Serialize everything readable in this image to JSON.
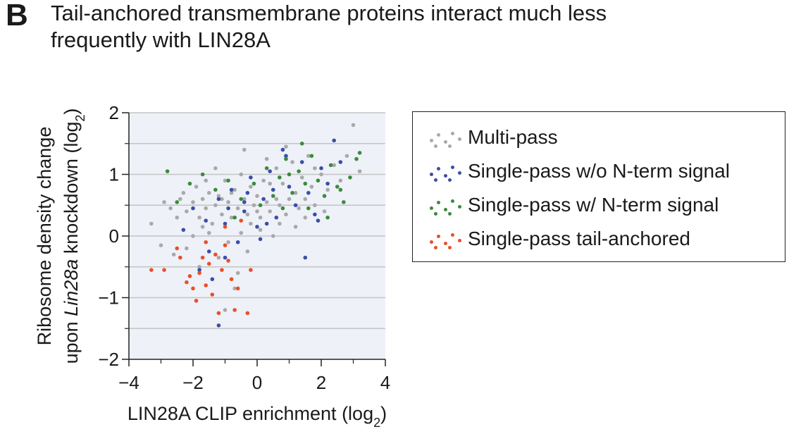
{
  "panel_letter": "B",
  "title": "Tail-anchored transmembrane proteins interact much less frequently with LIN28A",
  "chart_data": {
    "type": "scatter",
    "title": "Tail-anchored transmembrane proteins interact much less frequently with LIN28A",
    "xlabel": "LIN28A CLIP enrichment (log2)",
    "ylabel_line1": "Ribosome density change",
    "ylabel_line2": "upon Lin28a knockdown (log2)",
    "xlim": [
      -4,
      4
    ],
    "ylim": [
      -2,
      2
    ],
    "xticks": [
      -4,
      -2,
      0,
      2,
      4
    ],
    "yticks": [
      -2,
      -1,
      0,
      1,
      2
    ],
    "xtick_labels": [
      "−4",
      "−2",
      "0",
      "2",
      "4"
    ],
    "ytick_labels": [
      "−2",
      "−1",
      "0",
      "1",
      "2"
    ],
    "grid": "horizontal",
    "legend_position": "right",
    "series": [
      {
        "name": "Multi-pass",
        "color": "#a9a9a9",
        "points": [
          [
            -3.3,
            0.2
          ],
          [
            -2.9,
            0.55
          ],
          [
            -2.7,
            0.45
          ],
          [
            -2.5,
            0.3
          ],
          [
            -2.3,
            0.7
          ],
          [
            -2.2,
            0.4
          ],
          [
            -2.0,
            0.55
          ],
          [
            -1.9,
            0.8
          ],
          [
            -1.8,
            0.3
          ],
          [
            -1.7,
            0.6
          ],
          [
            -1.6,
            0.45
          ],
          [
            -1.5,
            0.7
          ],
          [
            -1.4,
            0.2
          ],
          [
            -1.3,
            0.5
          ],
          [
            -1.2,
            0.65
          ],
          [
            -1.1,
            0.35
          ],
          [
            -1.0,
            0.9
          ],
          [
            -0.9,
            0.55
          ],
          [
            -0.8,
            0.3
          ],
          [
            -0.7,
            0.75
          ],
          [
            -0.6,
            0.45
          ],
          [
            -0.5,
            1.0
          ],
          [
            -0.4,
            0.6
          ],
          [
            -0.3,
            0.35
          ],
          [
            -0.2,
            0.8
          ],
          [
            -0.1,
            0.5
          ],
          [
            0.0,
            0.65
          ],
          [
            0.1,
            0.3
          ],
          [
            0.2,
            0.9
          ],
          [
            0.3,
            0.55
          ],
          [
            0.4,
            0.4
          ],
          [
            0.5,
            0.75
          ],
          [
            0.6,
            1.1
          ],
          [
            0.7,
            0.5
          ],
          [
            0.8,
            0.85
          ],
          [
            0.9,
            0.35
          ],
          [
            1.0,
            0.6
          ],
          [
            1.1,
            1.2
          ],
          [
            1.2,
            0.7
          ],
          [
            1.3,
            0.45
          ],
          [
            1.4,
            0.95
          ],
          [
            1.5,
            0.6
          ],
          [
            1.6,
            1.3
          ],
          [
            1.7,
            0.8
          ],
          [
            1.8,
            0.5
          ],
          [
            2.0,
            1.0
          ],
          [
            2.2,
            0.75
          ],
          [
            2.4,
            1.15
          ],
          [
            2.6,
            0.9
          ],
          [
            2.8,
            1.3
          ],
          [
            3.0,
            1.8
          ],
          [
            3.2,
            1.05
          ],
          [
            -2.6,
            -0.3
          ],
          [
            -2.2,
            -0.2
          ],
          [
            -1.8,
            -0.5
          ],
          [
            -1.5,
            0.05
          ],
          [
            -1.2,
            -0.35
          ],
          [
            -0.9,
            -0.1
          ],
          [
            -0.6,
            -0.6
          ],
          [
            -0.3,
            -0.25
          ],
          [
            0.1,
            0.1
          ],
          [
            0.5,
            0.0
          ],
          [
            -1.0,
            -1.2
          ],
          [
            -0.7,
            -0.85
          ],
          [
            -2.0,
            0.0
          ],
          [
            -1.6,
            0.9
          ],
          [
            -0.4,
            1.4
          ],
          [
            0.3,
            1.25
          ],
          [
            0.9,
            1.45
          ],
          [
            -2.4,
            0.6
          ],
          [
            -1.3,
            1.1
          ],
          [
            -0.2,
            0.2
          ],
          [
            0.7,
            0.2
          ],
          [
            1.5,
            0.3
          ],
          [
            2.1,
            0.4
          ],
          [
            -3.0,
            -0.15
          ],
          [
            -1.7,
            0.15
          ],
          [
            -0.5,
            0.05
          ],
          [
            0.4,
            0.85
          ],
          [
            1.2,
            0.15
          ],
          [
            -1.1,
            0.6
          ],
          [
            -0.8,
            0.7
          ],
          [
            0.0,
            0.4
          ],
          [
            0.6,
            0.6
          ],
          [
            1.8,
            1.1
          ]
        ]
      },
      {
        "name": "Single-pass w/o N-term signal",
        "color": "#3b4ea6",
        "points": [
          [
            -2.3,
            0.1
          ],
          [
            -2.0,
            0.45
          ],
          [
            -1.8,
            -0.55
          ],
          [
            -1.6,
            0.25
          ],
          [
            -1.4,
            -0.7
          ],
          [
            -1.2,
            0.6
          ],
          [
            -1.0,
            0.2
          ],
          [
            -0.8,
            0.75
          ],
          [
            -0.6,
            -0.1
          ],
          [
            -0.4,
            0.4
          ],
          [
            -0.2,
            0.95
          ],
          [
            0.0,
            0.15
          ],
          [
            0.2,
            0.6
          ],
          [
            0.4,
            1.05
          ],
          [
            0.6,
            0.3
          ],
          [
            0.8,
            1.4
          ],
          [
            1.0,
            0.8
          ],
          [
            1.2,
            0.5
          ],
          [
            1.4,
            1.2
          ],
          [
            1.6,
            0.7
          ],
          [
            1.8,
            0.35
          ],
          [
            2.0,
            1.1
          ],
          [
            2.2,
            0.85
          ],
          [
            2.4,
            1.55
          ],
          [
            2.6,
            1.2
          ],
          [
            -1.2,
            -1.45
          ],
          [
            -1.0,
            -0.35
          ],
          [
            -0.4,
            0.55
          ],
          [
            0.1,
            -0.05
          ],
          [
            0.5,
            0.75
          ],
          [
            1.5,
            -0.35
          ],
          [
            1.9,
            0.25
          ],
          [
            -1.5,
            -0.25
          ],
          [
            -0.9,
            0.45
          ],
          [
            0.9,
            1.3
          ],
          [
            0.3,
            0.2
          ],
          [
            -0.3,
            0.7
          ]
        ]
      },
      {
        "name": "Single-pass w/ N-term signal",
        "color": "#3b8a3b",
        "points": [
          [
            -2.8,
            1.05
          ],
          [
            -2.5,
            0.55
          ],
          [
            -2.1,
            0.85
          ],
          [
            -1.7,
            1.0
          ],
          [
            -1.3,
            0.75
          ],
          [
            -0.9,
            0.9
          ],
          [
            -0.5,
            0.6
          ],
          [
            -0.1,
            0.85
          ],
          [
            0.3,
            1.1
          ],
          [
            0.5,
            0.65
          ],
          [
            0.7,
            0.95
          ],
          [
            0.9,
            1.25
          ],
          [
            1.1,
            0.7
          ],
          [
            1.3,
            1.05
          ],
          [
            1.5,
            0.85
          ],
          [
            1.7,
            1.3
          ],
          [
            1.9,
            0.9
          ],
          [
            2.1,
            0.65
          ],
          [
            2.3,
            1.15
          ],
          [
            2.5,
            0.8
          ],
          [
            2.7,
            0.55
          ],
          [
            2.9,
            0.95
          ],
          [
            3.1,
            1.25
          ],
          [
            3.2,
            1.35
          ],
          [
            1.4,
            1.5
          ],
          [
            0.8,
            0.45
          ],
          [
            1.6,
            0.45
          ],
          [
            2.2,
            0.3
          ],
          [
            -0.7,
            0.3
          ],
          [
            0.1,
            0.5
          ],
          [
            1.0,
            1.0
          ],
          [
            2.6,
            0.75
          ]
        ]
      },
      {
        "name": "Single-pass tail-anchored",
        "color": "#e8502a",
        "points": [
          [
            -3.3,
            -0.55
          ],
          [
            -2.9,
            -0.55
          ],
          [
            -2.5,
            -0.2
          ],
          [
            -2.2,
            -0.75
          ],
          [
            -2.1,
            -0.65
          ],
          [
            -2.0,
            -0.85
          ],
          [
            -1.9,
            -1.05
          ],
          [
            -1.8,
            -0.6
          ],
          [
            -1.7,
            -0.35
          ],
          [
            -1.6,
            -0.8
          ],
          [
            -1.5,
            -0.45
          ],
          [
            -1.4,
            -0.95
          ],
          [
            -1.3,
            -0.3
          ],
          [
            -1.2,
            -1.25
          ],
          [
            -1.1,
            -0.55
          ],
          [
            -1.0,
            -0.15
          ],
          [
            -0.9,
            -0.4
          ],
          [
            -0.8,
            -0.7
          ],
          [
            -0.7,
            -1.2
          ],
          [
            -0.6,
            -0.85
          ],
          [
            -0.5,
            0.25
          ],
          [
            -0.3,
            -1.25
          ],
          [
            -0.2,
            -0.55
          ],
          [
            -1.0,
            0.15
          ],
          [
            -1.6,
            -0.1
          ],
          [
            -2.4,
            -0.35
          ]
        ]
      }
    ]
  },
  "legend": {
    "items": [
      {
        "label": "Multi-pass",
        "color": "#a9a9a9"
      },
      {
        "label": "Single-pass w/o N-term signal",
        "color": "#3b4ea6"
      },
      {
        "label": "Single-pass w/ N-term signal",
        "color": "#3b8a3b"
      },
      {
        "label": "Single-pass tail-anchored",
        "color": "#e8502a"
      }
    ]
  }
}
